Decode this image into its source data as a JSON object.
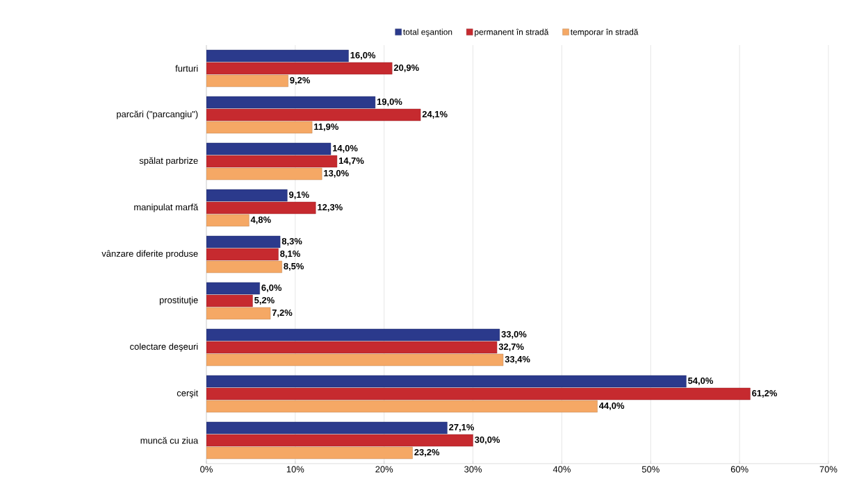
{
  "chart_data": {
    "type": "bar",
    "orientation": "horizontal",
    "categories": [
      "furturi",
      "parcări (\"parcangiu\")",
      "spălat parbrize",
      "manipulat marfă",
      "vânzare diferite produse",
      "prostituţie",
      "colectare deşeuri",
      "cerşit",
      "muncă cu ziua"
    ],
    "series": [
      {
        "name": "total eşantion",
        "color": "#2b3a8c",
        "values": [
          16.0,
          19.0,
          14.0,
          9.1,
          8.3,
          6.0,
          33.0,
          54.0,
          27.1
        ],
        "value_labels": [
          "16,0%",
          "19,0%",
          "14,0%",
          "9,1%",
          "8,3%",
          "6,0%",
          "33,0%",
          "54,0%",
          "27,1%"
        ]
      },
      {
        "name": "permanent în stradă",
        "color": "#c62a2f",
        "values": [
          20.9,
          24.1,
          14.7,
          12.3,
          8.1,
          5.2,
          32.7,
          61.2,
          30.0
        ],
        "value_labels": [
          "20,9%",
          "24,1%",
          "14,7%",
          "12,3%",
          "8,1%",
          "5,2%",
          "32,7%",
          "61,2%",
          "30,0%"
        ]
      },
      {
        "name": "temporar în stradă",
        "color": "#f5a865",
        "values": [
          9.2,
          11.9,
          13.0,
          4.8,
          8.5,
          7.2,
          33.4,
          44.0,
          23.2
        ],
        "value_labels": [
          "9,2%",
          "11,9%",
          "13,0%",
          "4,8%",
          "8,5%",
          "7,2%",
          "33,4%",
          "44,0%",
          "23,2%"
        ]
      }
    ],
    "xlim": [
      0,
      70
    ],
    "xticks": [
      {
        "value": 0,
        "label": "0%"
      },
      {
        "value": 10,
        "label": "10%"
      },
      {
        "value": 20,
        "label": "20%"
      },
      {
        "value": 30,
        "label": "30%"
      },
      {
        "value": 40,
        "label": "40%"
      },
      {
        "value": 50,
        "label": "50%"
      },
      {
        "value": 60,
        "label": "60%"
      },
      {
        "value": 70,
        "label": "70%"
      }
    ],
    "grid": "x",
    "legend": "top"
  }
}
